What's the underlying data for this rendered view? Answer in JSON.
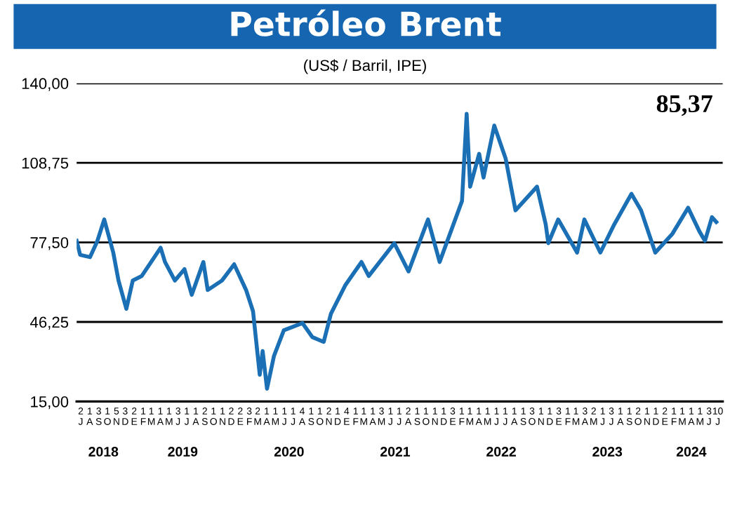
{
  "chart_data": {
    "type": "line",
    "title": "Petróleo Brent",
    "subtitle": "(US$ / Barril, IPE)",
    "annotations": [
      "85,37"
    ],
    "x": [
      "2018-07-01",
      "2018-07-13",
      "2018-08-16",
      "2018-09-10",
      "2018-10-04",
      "2018-11-04",
      "2018-11-22",
      "2018-12-19",
      "2019-01-10",
      "2019-02-10",
      "2019-04-16",
      "2019-05-01",
      "2019-06-04",
      "2019-07-07",
      "2019-08-01",
      "2019-09-10",
      "2019-09-25",
      "2019-11-13",
      "2019-12-25",
      "2020-02-04",
      "2020-02-28",
      "2020-03-22",
      "2020-04-01",
      "2020-04-16",
      "2020-05-10",
      "2020-06-13",
      "2020-08-16",
      "2020-09-19",
      "2020-10-28",
      "2020-11-22",
      "2021-01-10",
      "2021-03-07",
      "2021-04-01",
      "2021-06-28",
      "2021-08-16",
      "2021-10-22",
      "2021-12-01",
      "2022-02-16",
      "2022-03-04",
      "2022-03-16",
      "2022-04-16",
      "2022-05-01",
      "2022-06-07",
      "2022-07-16",
      "2022-08-19",
      "2022-11-01",
      "2022-12-01",
      "2022-12-10",
      "2023-01-13",
      "2023-03-19",
      "2023-04-13",
      "2023-06-07",
      "2023-07-25",
      "2023-09-22",
      "2023-10-25",
      "2023-12-13",
      "2024-02-10",
      "2024-04-04",
      "2024-05-13",
      "2024-06-01",
      "2024-06-25",
      "2024-07-10"
    ],
    "series": [
      {
        "color": "#1a6fb5",
        "values": [
          78.1,
          72.6,
          71.7,
          78.0,
          86.5,
          73.5,
          62.5,
          51.4,
          62.5,
          64.3,
          75.4,
          69.8,
          62.5,
          67.0,
          56.9,
          69.8,
          58.8,
          62.5,
          68.9,
          58.8,
          50.4,
          25.5,
          34.8,
          20.0,
          32.9,
          43.0,
          45.8,
          40.3,
          38.4,
          49.5,
          60.6,
          69.8,
          64.3,
          77.2,
          66.1,
          86.5,
          69.8,
          93.8,
          128.0,
          99.4,
          112.3,
          103.0,
          123.4,
          110.5,
          90.1,
          99.4,
          84.6,
          77.2,
          86.5,
          73.5,
          86.5,
          73.5,
          84.6,
          96.6,
          90.1,
          73.5,
          80.9,
          91.1,
          81.8,
          78.1,
          87.4,
          85.5
        ]
      }
    ],
    "ylim": [
      15,
      140
    ],
    "yticks": [
      {
        "value": 15,
        "label": "15,00"
      },
      {
        "value": 46.25,
        "label": "46,25"
      },
      {
        "value": 77.5,
        "label": "77,50"
      },
      {
        "value": 108.75,
        "label": "108,75"
      },
      {
        "value": 140,
        "label": "140,00"
      }
    ],
    "xlim": [
      "2018-07-01",
      "2024-08-01"
    ],
    "xticks": [
      {
        "value": "2018-07-15",
        "label": "2\nJ"
      },
      {
        "value": "2018-08-15",
        "label": "1\nA"
      },
      {
        "value": "2018-09-15",
        "label": "3\nS"
      },
      {
        "value": "2018-10-15",
        "label": "1\nO"
      },
      {
        "value": "2018-11-15",
        "label": "5\nN"
      },
      {
        "value": "2018-12-15",
        "label": "3\nD"
      },
      {
        "value": "2019-01-15",
        "label": "2\nE"
      },
      {
        "value": "2019-02-15",
        "label": "1\nF"
      },
      {
        "value": "2019-03-15",
        "label": "1\nM"
      },
      {
        "value": "2019-04-15",
        "label": "1\nA"
      },
      {
        "value": "2019-05-15",
        "label": "1\nM"
      },
      {
        "value": "2019-06-15",
        "label": "3\nJ"
      },
      {
        "value": "2019-07-15",
        "label": "1\nJ"
      },
      {
        "value": "2019-08-15",
        "label": "1\nA"
      },
      {
        "value": "2019-09-15",
        "label": "2\nS"
      },
      {
        "value": "2019-10-15",
        "label": "1\nO"
      },
      {
        "value": "2019-11-15",
        "label": "1\nN"
      },
      {
        "value": "2019-12-15",
        "label": "2\nD"
      },
      {
        "value": "2020-01-15",
        "label": "2\nE"
      },
      {
        "value": "2020-02-15",
        "label": "3\nF"
      },
      {
        "value": "2020-03-15",
        "label": "2\nM"
      },
      {
        "value": "2020-04-15",
        "label": "1\nA"
      },
      {
        "value": "2020-05-15",
        "label": "1\nM"
      },
      {
        "value": "2020-06-15",
        "label": "1\nJ"
      },
      {
        "value": "2020-07-15",
        "label": "1\nJ"
      },
      {
        "value": "2020-08-15",
        "label": "4\nA"
      },
      {
        "value": "2020-09-15",
        "label": "1\nS"
      },
      {
        "value": "2020-10-15",
        "label": "1\nO"
      },
      {
        "value": "2020-11-15",
        "label": "2\nN"
      },
      {
        "value": "2020-12-15",
        "label": "1\nD"
      },
      {
        "value": "2021-01-15",
        "label": "4\nE"
      },
      {
        "value": "2021-02-15",
        "label": "1\nF"
      },
      {
        "value": "2021-03-15",
        "label": "1\nM"
      },
      {
        "value": "2021-04-15",
        "label": "1\nA"
      },
      {
        "value": "2021-05-15",
        "label": "3\nM"
      },
      {
        "value": "2021-06-15",
        "label": "1\nJ"
      },
      {
        "value": "2021-07-15",
        "label": "1\nJ"
      },
      {
        "value": "2021-08-15",
        "label": "2\nA"
      },
      {
        "value": "2021-09-15",
        "label": "1\nS"
      },
      {
        "value": "2021-10-15",
        "label": "1\nO"
      },
      {
        "value": "2021-11-15",
        "label": "1\nN"
      },
      {
        "value": "2021-12-15",
        "label": "1\nD"
      },
      {
        "value": "2022-01-15",
        "label": "3\nE"
      },
      {
        "value": "2022-02-15",
        "label": "1\nF"
      },
      {
        "value": "2022-03-15",
        "label": "1\nM"
      },
      {
        "value": "2022-04-15",
        "label": "1\nA"
      },
      {
        "value": "2022-05-15",
        "label": "1\nM"
      },
      {
        "value": "2022-06-15",
        "label": "1\nJ"
      },
      {
        "value": "2022-07-15",
        "label": "1\nJ"
      },
      {
        "value": "2022-08-15",
        "label": "1\nA"
      },
      {
        "value": "2022-09-15",
        "label": "1\nS"
      },
      {
        "value": "2022-10-15",
        "label": "3\nO"
      },
      {
        "value": "2022-11-15",
        "label": "1\nN"
      },
      {
        "value": "2022-12-15",
        "label": "1\nD"
      },
      {
        "value": "2023-01-15",
        "label": "3\nE"
      },
      {
        "value": "2023-02-15",
        "label": "1\nF"
      },
      {
        "value": "2023-03-15",
        "label": "1\nM"
      },
      {
        "value": "2023-04-15",
        "label": "3\nA"
      },
      {
        "value": "2023-05-15",
        "label": "2\nM"
      },
      {
        "value": "2023-06-15",
        "label": "1\nJ"
      },
      {
        "value": "2023-07-15",
        "label": "3\nJ"
      },
      {
        "value": "2023-08-15",
        "label": "1\nA"
      },
      {
        "value": "2023-09-15",
        "label": "1\nS"
      },
      {
        "value": "2023-10-15",
        "label": "2\nO"
      },
      {
        "value": "2023-11-15",
        "label": "1\nN"
      },
      {
        "value": "2023-12-15",
        "label": "1\nD"
      },
      {
        "value": "2024-01-15",
        "label": "2\nE"
      },
      {
        "value": "2024-02-15",
        "label": "1\nF"
      },
      {
        "value": "2024-03-15",
        "label": "1\nM"
      },
      {
        "value": "2024-04-15",
        "label": "1\nA"
      },
      {
        "value": "2024-05-15",
        "label": "1\nM"
      },
      {
        "value": "2024-06-15",
        "label": "3\nJ"
      },
      {
        "value": "2024-07-15",
        "label": "10\nJ"
      }
    ],
    "x2lim": [
      "2018-07-01",
      "2024-08-01"
    ],
    "x2ticks": [
      {
        "value": "2018-10-01",
        "label": "2018"
      },
      {
        "value": "2019-07-01",
        "label": "2019"
      },
      {
        "value": "2020-07-01",
        "label": "2020"
      },
      {
        "value": "2021-07-01",
        "label": "2021"
      },
      {
        "value": "2022-07-01",
        "label": "2022"
      },
      {
        "value": "2023-07-01",
        "label": "2023"
      },
      {
        "value": "2024-04-15",
        "label": "2024"
      }
    ],
    "grid": "y",
    "legend": false,
    "marker": "none",
    "line_style": "solid"
  }
}
